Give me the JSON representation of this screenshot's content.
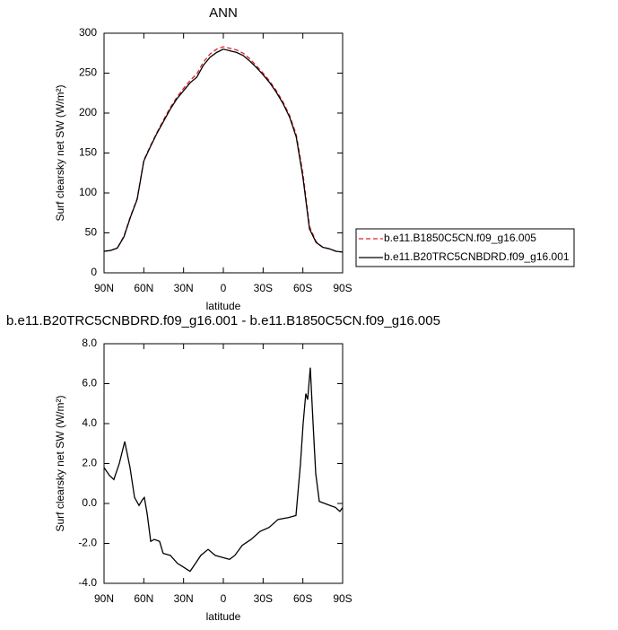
{
  "chart_data": [
    {
      "type": "line",
      "title": "ANN",
      "xlabel": "latitude",
      "ylabel": "Surf clearsky net SW (W/m²)",
      "x": [
        90,
        85,
        80,
        75,
        70,
        65,
        60,
        55,
        50,
        45,
        40,
        35,
        30,
        25,
        20,
        15,
        10,
        5,
        0,
        -5,
        -10,
        -15,
        -20,
        -25,
        -30,
        -35,
        -40,
        -45,
        -50,
        -55,
        -60,
        -65,
        -70,
        -75,
        -80,
        -85,
        -90
      ],
      "series": [
        {
          "name": "b.e11.B1850C5CN.f09_g16.005",
          "color": "#e0202a",
          "line_style": "dashed",
          "values": [
            27,
            28,
            31,
            46,
            71,
            93,
            141,
            159,
            176,
            192,
            207,
            220,
            231,
            241,
            249,
            264,
            274,
            280,
            283,
            281,
            279,
            275,
            268,
            259,
            250,
            240,
            228,
            214,
            197,
            173,
            125,
            58,
            39,
            32,
            30,
            27,
            26
          ]
        },
        {
          "name": "b.e11.B20TRC5CNBDRD.f09_g16.001",
          "color": "#000000",
          "line_style": "solid",
          "values": [
            27,
            28,
            31,
            45,
            70,
            92,
            140,
            158,
            175,
            190,
            205,
            218,
            228,
            238,
            245,
            260,
            270,
            276,
            280,
            278,
            276,
            272,
            265,
            257,
            248,
            238,
            226,
            212,
            195,
            170,
            120,
            55,
            38,
            32,
            30,
            27,
            26
          ]
        }
      ],
      "xlim": [
        90,
        -90
      ],
      "xticks": [
        {
          "value": 90,
          "label": "90N"
        },
        {
          "value": 60,
          "label": "60N"
        },
        {
          "value": 30,
          "label": "30N"
        },
        0,
        {
          "value": -30,
          "label": "30S"
        },
        {
          "value": -60,
          "label": "60S"
        },
        {
          "value": -90,
          "label": "90S"
        }
      ],
      "ylim": [
        0,
        300
      ],
      "yticks": [
        0,
        50,
        100,
        150,
        200,
        250,
        300
      ]
    },
    {
      "type": "line",
      "title": "b.e11.B20TRC5CNBDRD.f09_g16.001 - b.e11.B1850C5CN.f09_g16.005",
      "xlabel": "latitude",
      "ylabel": "Surf clearsky net SW (W/m²)",
      "x": [
        90,
        85.9,
        82.6,
        78.5,
        74.4,
        70.4,
        67,
        63.6,
        60.9,
        59.6,
        57.5,
        54.8,
        52.1,
        48.1,
        45.4,
        40,
        34.6,
        29.8,
        25.1,
        21,
        17,
        11.5,
        6.1,
        0.7,
        -4.7,
        -8.7,
        -14.2,
        -20.9,
        -27.7,
        -34.5,
        -41.3,
        -49.4,
        -54.8,
        -58.2,
        -60.2,
        -62.2,
        -63.6,
        -65.6,
        -67.7,
        -69.7,
        -72.4,
        -76.5,
        -80.5,
        -84.6,
        -87.9,
        -90
      ],
      "series": [
        {
          "color": "#000000",
          "line_style": "solid",
          "values": [
            1.8,
            1.4,
            1.2,
            2.0,
            3.1,
            1.8,
            0.3,
            -0.1,
            0.2,
            0.3,
            -0.5,
            -1.9,
            -1.8,
            -1.9,
            -2.5,
            -2.6,
            -3.0,
            -3.2,
            -3.4,
            -3.0,
            -2.6,
            -2.3,
            -2.6,
            -2.7,
            -2.8,
            -2.6,
            -2.1,
            -1.8,
            -1.4,
            -1.2,
            -0.8,
            -0.7,
            -0.6,
            2.0,
            4.0,
            5.5,
            5.2,
            6.8,
            4.0,
            1.5,
            0.1,
            0.0,
            -0.1,
            -0.2,
            -0.4,
            -0.2
          ]
        }
      ],
      "xlim": [
        90,
        -90
      ],
      "xticks": [
        {
          "value": 90,
          "label": "90N"
        },
        {
          "value": 60,
          "label": "60N"
        },
        {
          "value": 30,
          "label": "30N"
        },
        0,
        {
          "value": -30,
          "label": "30S"
        },
        {
          "value": -60,
          "label": "60S"
        },
        {
          "value": -90,
          "label": "90S"
        }
      ],
      "ylim": [
        -4,
        8
      ],
      "yticks": [
        {
          "value": -4,
          "label": "-4.0"
        },
        {
          "value": -2,
          "label": "-2.0"
        },
        {
          "value": 0,
          "label": "0.0"
        },
        {
          "value": 2,
          "label": "2.0"
        },
        {
          "value": 4,
          "label": "4.0"
        },
        {
          "value": 6,
          "label": "6.0"
        },
        {
          "value": 8,
          "label": "8.0"
        }
      ]
    }
  ]
}
